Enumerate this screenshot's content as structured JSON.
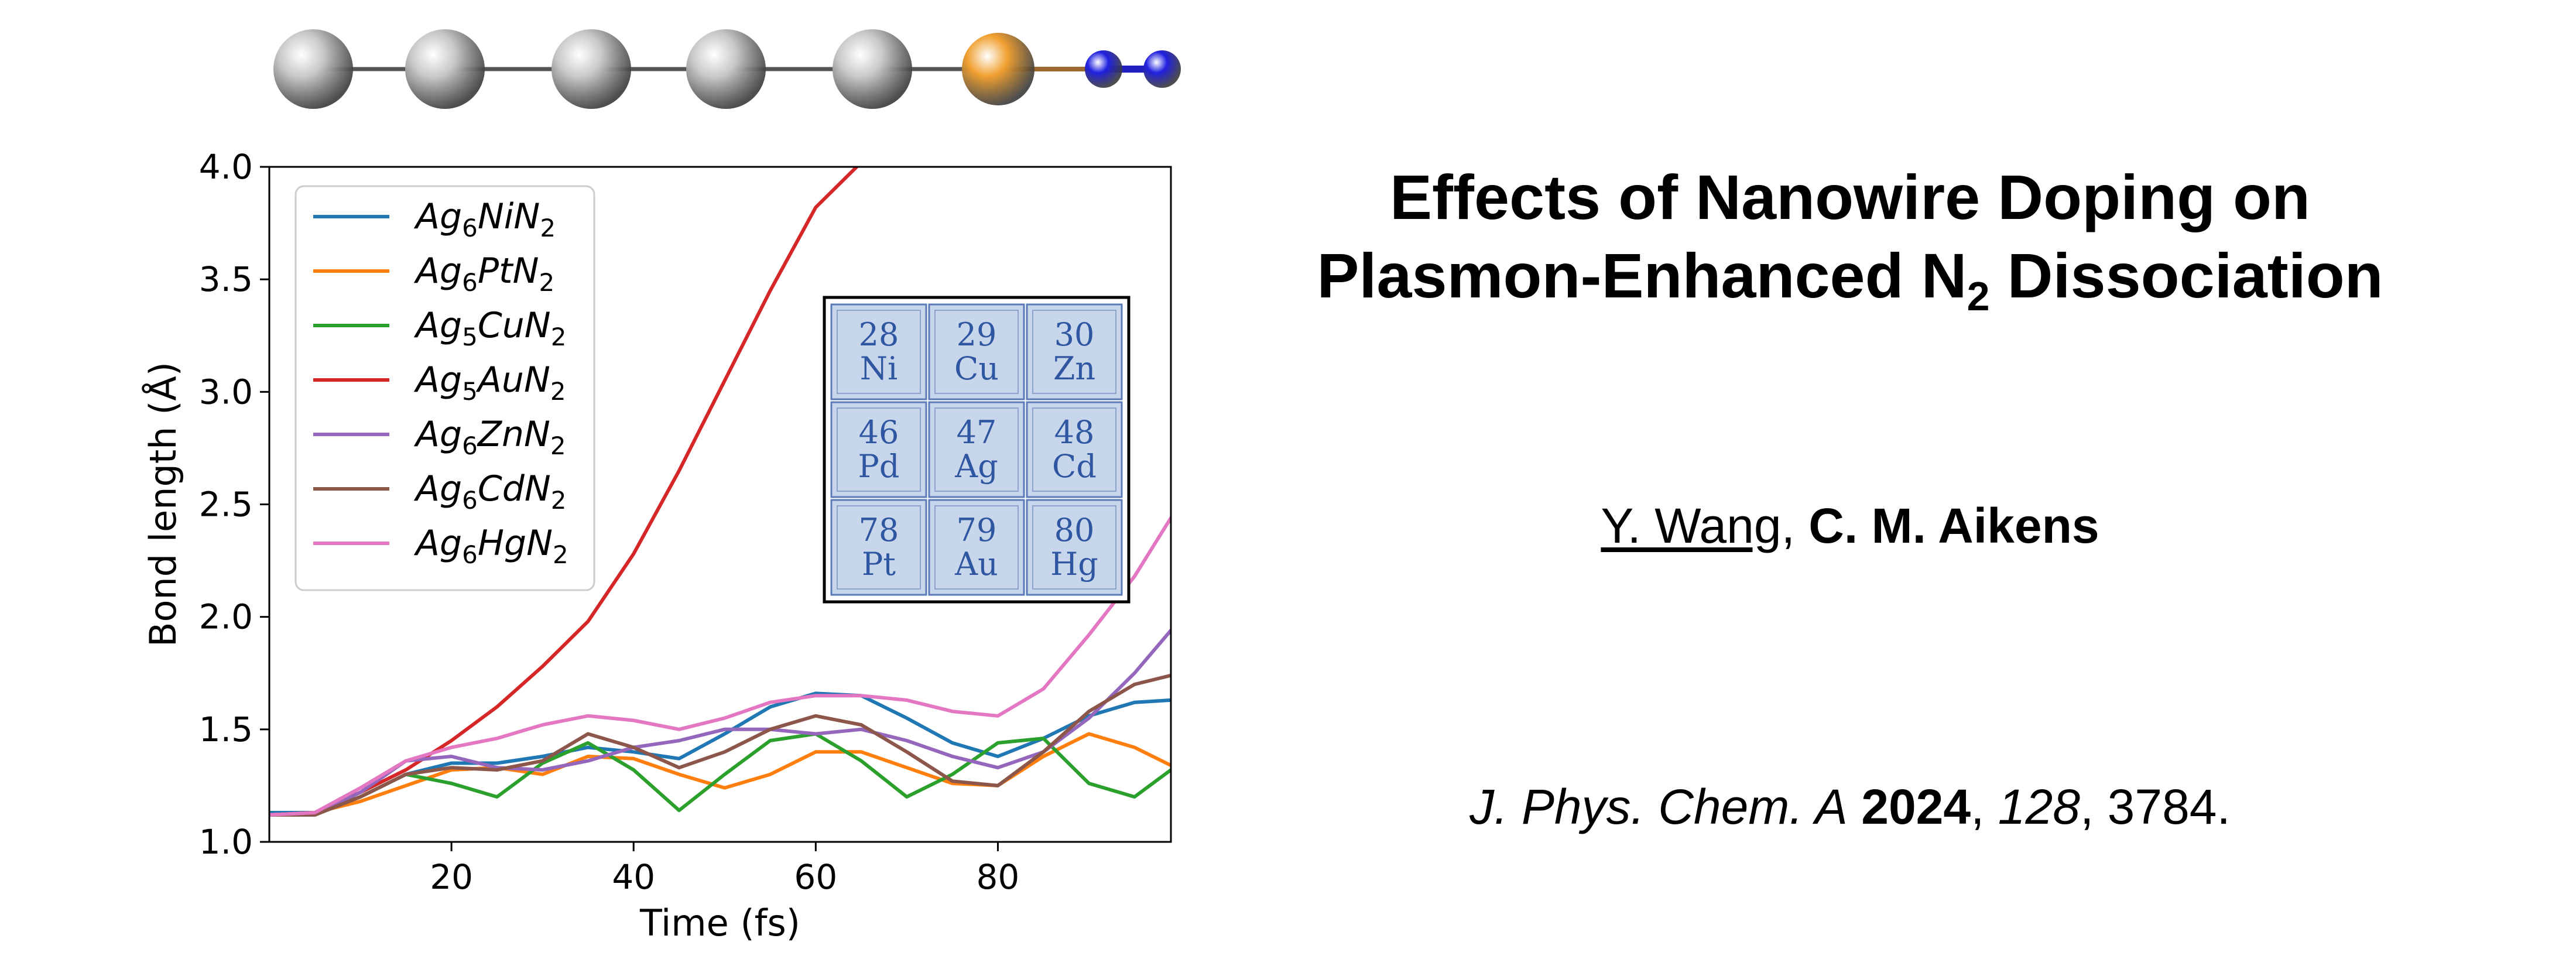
{
  "title": {
    "line1": "Effects of Nanowire Doping on",
    "line2_pre": "Plasmon-Enhanced N",
    "line2_sub": "2",
    "line2_post": " Dissociation"
  },
  "authors": {
    "author1": "Y. Wang",
    "separator": ", ",
    "author2": "C. M. Aikens"
  },
  "citation": {
    "journal": "J. Phys. Chem. A",
    "year": "2024",
    "volume": "128",
    "pages": "3784",
    "sep1": " ",
    "sep2": ", ",
    "sep3": ", ",
    "end": "."
  },
  "molecule": {
    "atoms": [
      {
        "element": "Ag",
        "color": "#c8c8c8"
      },
      {
        "element": "Ag",
        "color": "#c8c8c8"
      },
      {
        "element": "Ag",
        "color": "#c8c8c8"
      },
      {
        "element": "Ag",
        "color": "#c8c8c8"
      },
      {
        "element": "Ag",
        "color": "#c8c8c8"
      },
      {
        "element": "dopant",
        "color": "#f0a030"
      },
      {
        "element": "N",
        "color": "#2020e0"
      },
      {
        "element": "N",
        "color": "#2020e0"
      }
    ]
  },
  "periodic_inset": [
    {
      "number": "28",
      "symbol": "Ni"
    },
    {
      "number": "29",
      "symbol": "Cu"
    },
    {
      "number": "30",
      "symbol": "Zn"
    },
    {
      "number": "46",
      "symbol": "Pd"
    },
    {
      "number": "47",
      "symbol": "Ag"
    },
    {
      "number": "48",
      "symbol": "Cd"
    },
    {
      "number": "78",
      "symbol": "Pt"
    },
    {
      "number": "79",
      "symbol": "Au"
    },
    {
      "number": "80",
      "symbol": "Hg"
    }
  ],
  "chart_data": {
    "type": "line",
    "xlabel": "Time (fs)",
    "ylabel": "Bond length (Å)",
    "xlim": [
      0,
      99
    ],
    "ylim": [
      1.0,
      4.0
    ],
    "xticks": [
      20,
      40,
      60,
      80
    ],
    "yticks": [
      "1.0",
      "1.5",
      "2.0",
      "2.5",
      "3.0",
      "3.5",
      "4.0"
    ],
    "grid": false,
    "legend_position": "top-left",
    "series": [
      {
        "name_base": "Ag",
        "name_sub1": "6",
        "name_mid": "NiN",
        "name_sub2": "2",
        "color": "#1f77b4",
        "x": [
          0,
          5,
          10,
          15,
          20,
          25,
          30,
          35,
          40,
          45,
          50,
          55,
          60,
          65,
          70,
          75,
          80,
          85,
          90,
          95,
          99
        ],
        "y": [
          1.13,
          1.13,
          1.2,
          1.3,
          1.35,
          1.35,
          1.38,
          1.42,
          1.4,
          1.37,
          1.48,
          1.6,
          1.66,
          1.65,
          1.55,
          1.44,
          1.38,
          1.46,
          1.56,
          1.62,
          1.63
        ]
      },
      {
        "name_base": "Ag",
        "name_sub1": "6",
        "name_mid": "PtN",
        "name_sub2": "2",
        "color": "#ff7f0e",
        "x": [
          0,
          5,
          10,
          15,
          20,
          25,
          30,
          35,
          40,
          45,
          50,
          55,
          60,
          65,
          70,
          75,
          80,
          85,
          90,
          95,
          99
        ],
        "y": [
          1.12,
          1.13,
          1.18,
          1.25,
          1.32,
          1.33,
          1.3,
          1.38,
          1.37,
          1.3,
          1.24,
          1.3,
          1.4,
          1.4,
          1.33,
          1.26,
          1.25,
          1.38,
          1.48,
          1.42,
          1.34
        ]
      },
      {
        "name_base": "Ag",
        "name_sub1": "5",
        "name_mid": "CuN",
        "name_sub2": "2",
        "color": "#2ca02c",
        "x": [
          0,
          5,
          10,
          15,
          20,
          25,
          30,
          35,
          40,
          45,
          50,
          55,
          60,
          65,
          70,
          75,
          80,
          85,
          90,
          95,
          99
        ],
        "y": [
          1.12,
          1.12,
          1.2,
          1.3,
          1.26,
          1.2,
          1.35,
          1.44,
          1.32,
          1.14,
          1.3,
          1.45,
          1.48,
          1.36,
          1.2,
          1.3,
          1.44,
          1.46,
          1.26,
          1.2,
          1.32
        ]
      },
      {
        "name_base": "Ag",
        "name_sub1": "5",
        "name_mid": "AuN",
        "name_sub2": "2",
        "color": "#d62728",
        "x": [
          0,
          5,
          10,
          15,
          20,
          25,
          30,
          35,
          40,
          45,
          50,
          55,
          60,
          65
        ],
        "y": [
          1.12,
          1.13,
          1.22,
          1.32,
          1.45,
          1.6,
          1.78,
          1.98,
          2.28,
          2.65,
          3.05,
          3.45,
          3.82,
          4.02
        ]
      },
      {
        "name_base": "Ag",
        "name_sub1": "6",
        "name_mid": "ZnN",
        "name_sub2": "2",
        "color": "#9467bd",
        "x": [
          0,
          5,
          10,
          15,
          20,
          25,
          30,
          35,
          40,
          45,
          50,
          55,
          60,
          65,
          70,
          75,
          80,
          85,
          90,
          95,
          99
        ],
        "y": [
          1.12,
          1.13,
          1.22,
          1.36,
          1.38,
          1.33,
          1.32,
          1.36,
          1.42,
          1.45,
          1.5,
          1.5,
          1.48,
          1.5,
          1.45,
          1.38,
          1.33,
          1.4,
          1.55,
          1.75,
          1.94
        ]
      },
      {
        "name_base": "Ag",
        "name_sub1": "6",
        "name_mid": "CdN",
        "name_sub2": "2",
        "color": "#8c564b",
        "x": [
          0,
          5,
          10,
          15,
          20,
          25,
          30,
          35,
          40,
          45,
          50,
          55,
          60,
          65,
          70,
          75,
          80,
          85,
          90,
          95,
          99
        ],
        "y": [
          1.12,
          1.12,
          1.2,
          1.3,
          1.33,
          1.32,
          1.36,
          1.48,
          1.42,
          1.33,
          1.4,
          1.5,
          1.56,
          1.52,
          1.4,
          1.27,
          1.25,
          1.4,
          1.58,
          1.7,
          1.74
        ]
      },
      {
        "name_base": "Ag",
        "name_sub1": "6",
        "name_mid": "HgN",
        "name_sub2": "2",
        "color": "#e377c2",
        "x": [
          0,
          5,
          10,
          15,
          20,
          25,
          30,
          35,
          40,
          45,
          50,
          55,
          60,
          65,
          70,
          75,
          80,
          85,
          90,
          95,
          99
        ],
        "y": [
          1.12,
          1.13,
          1.24,
          1.36,
          1.42,
          1.46,
          1.52,
          1.56,
          1.54,
          1.5,
          1.55,
          1.62,
          1.65,
          1.65,
          1.63,
          1.58,
          1.56,
          1.68,
          1.92,
          2.18,
          2.44
        ]
      }
    ]
  }
}
